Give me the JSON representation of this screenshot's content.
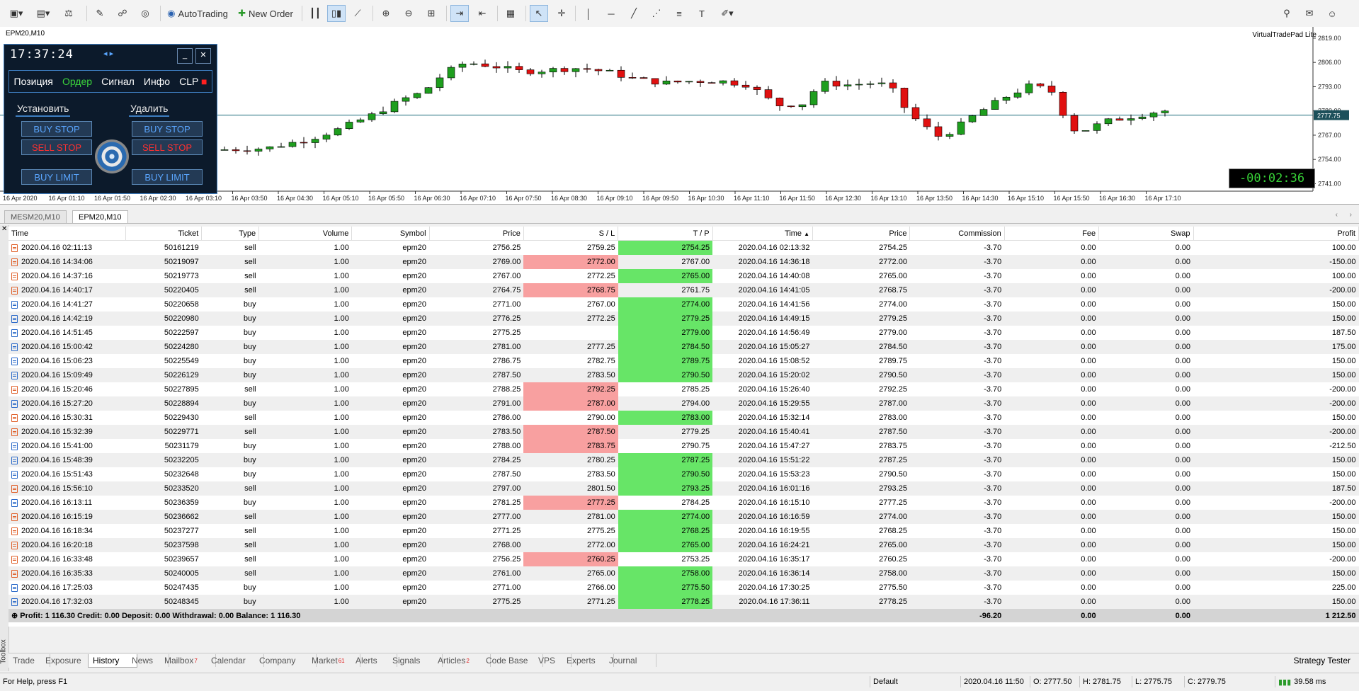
{
  "toolbar": {
    "autotrading_label": "AutoTrading",
    "new_order_label": "New Order"
  },
  "chart": {
    "title": "EPM20,M10",
    "vtp_label": "VirtualTradePad  Lite",
    "countdown": "-00:02:36",
    "current_price_label": "2777.75",
    "y_labels": [
      "2819.00",
      "2806.00",
      "2793.00",
      "2780.00",
      "2767.00",
      "2754.00",
      "2741.00"
    ],
    "x_labels": [
      "16 Apr 2020",
      "16 Apr 01:10",
      "16 Apr 01:50",
      "16 Apr 02:30",
      "16 Apr 03:10",
      "16 Apr 03:50",
      "16 Apr 04:30",
      "16 Apr 05:10",
      "16 Apr 05:50",
      "16 Apr 06:30",
      "16 Apr 07:10",
      "16 Apr 07:50",
      "16 Apr 08:30",
      "16 Apr 09:10",
      "16 Apr 09:50",
      "16 Apr 10:30",
      "16 Apr 11:10",
      "16 Apr 11:50",
      "16 Apr 12:30",
      "16 Apr 13:10",
      "16 Apr 13:50",
      "16 Apr 14:30",
      "16 Apr 15:10",
      "16 Apr 15:50",
      "16 Apr 16:30",
      "16 Apr 17:10"
    ],
    "colors": {
      "up": "#1e9e1e",
      "down": "#e01010",
      "grid": "#e6e6e6",
      "price_line": "#1c6b7a"
    }
  },
  "panel": {
    "clock": "17:37:24",
    "tabs": [
      "Позиция",
      "Ордер",
      "Сигнал",
      "Инфо",
      "CLP"
    ],
    "active_tab": "Ордер",
    "set_label": "Установить",
    "delete_label": "Удалить",
    "buttons": {
      "buy_stop": "BUY STOP",
      "sell_stop": "SELL STOP",
      "buy_limit": "BUY LIMIT"
    }
  },
  "window_tabs": [
    "MESM20,M10",
    "EPM20,M10"
  ],
  "grid": {
    "columns": [
      "Time",
      "Ticket",
      "Type",
      "Volume",
      "Symbol",
      "Price",
      "S / L",
      "T / P",
      "Time",
      "Price",
      "Commission",
      "Fee",
      "Swap",
      "Profit"
    ],
    "rows": [
      {
        "time": "2020.04.16 02:11:13",
        "ticket": "50161219",
        "type": "sell",
        "volume": "1.00",
        "symbol": "epm20",
        "price": "2756.25",
        "sl": "2759.25",
        "tp": "2754.25",
        "close_time": "2020.04.16 02:13:32",
        "close_price": "2754.25",
        "commission": "-3.70",
        "fee": "0.00",
        "swap": "0.00",
        "profit": "100.00"
      },
      {
        "time": "2020.04.16 14:34:06",
        "ticket": "50219097",
        "type": "sell",
        "volume": "1.00",
        "symbol": "epm20",
        "price": "2769.00",
        "sl": "2772.00",
        "tp": "2767.00",
        "close_time": "2020.04.16 14:36:18",
        "close_price": "2772.00",
        "commission": "-3.70",
        "fee": "0.00",
        "swap": "0.00",
        "profit": "-150.00"
      },
      {
        "time": "2020.04.16 14:37:16",
        "ticket": "50219773",
        "type": "sell",
        "volume": "1.00",
        "symbol": "epm20",
        "price": "2767.00",
        "sl": "2772.25",
        "tp": "2765.00",
        "close_time": "2020.04.16 14:40:08",
        "close_price": "2765.00",
        "commission": "-3.70",
        "fee": "0.00",
        "swap": "0.00",
        "profit": "100.00"
      },
      {
        "time": "2020.04.16 14:40:17",
        "ticket": "50220405",
        "type": "sell",
        "volume": "1.00",
        "symbol": "epm20",
        "price": "2764.75",
        "sl": "2768.75",
        "tp": "2761.75",
        "close_time": "2020.04.16 14:41:05",
        "close_price": "2768.75",
        "commission": "-3.70",
        "fee": "0.00",
        "swap": "0.00",
        "profit": "-200.00"
      },
      {
        "time": "2020.04.16 14:41:27",
        "ticket": "50220658",
        "type": "buy",
        "volume": "1.00",
        "symbol": "epm20",
        "price": "2771.00",
        "sl": "2767.00",
        "tp": "2774.00",
        "close_time": "2020.04.16 14:41:56",
        "close_price": "2774.00",
        "commission": "-3.70",
        "fee": "0.00",
        "swap": "0.00",
        "profit": "150.00"
      },
      {
        "time": "2020.04.16 14:42:19",
        "ticket": "50220980",
        "type": "buy",
        "volume": "1.00",
        "symbol": "epm20",
        "price": "2776.25",
        "sl": "2772.25",
        "tp": "2779.25",
        "close_time": "2020.04.16 14:49:15",
        "close_price": "2779.25",
        "commission": "-3.70",
        "fee": "0.00",
        "swap": "0.00",
        "profit": "150.00"
      },
      {
        "time": "2020.04.16 14:51:45",
        "ticket": "50222597",
        "type": "buy",
        "volume": "1.00",
        "symbol": "epm20",
        "price": "2775.25",
        "sl": "",
        "tp": "2779.00",
        "close_time": "2020.04.16 14:56:49",
        "close_price": "2779.00",
        "commission": "-3.70",
        "fee": "0.00",
        "swap": "0.00",
        "profit": "187.50"
      },
      {
        "time": "2020.04.16 15:00:42",
        "ticket": "50224280",
        "type": "buy",
        "volume": "1.00",
        "symbol": "epm20",
        "price": "2781.00",
        "sl": "2777.25",
        "tp": "2784.50",
        "close_time": "2020.04.16 15:05:27",
        "close_price": "2784.50",
        "commission": "-3.70",
        "fee": "0.00",
        "swap": "0.00",
        "profit": "175.00"
      },
      {
        "time": "2020.04.16 15:06:23",
        "ticket": "50225549",
        "type": "buy",
        "volume": "1.00",
        "symbol": "epm20",
        "price": "2786.75",
        "sl": "2782.75",
        "tp": "2789.75",
        "close_time": "2020.04.16 15:08:52",
        "close_price": "2789.75",
        "commission": "-3.70",
        "fee": "0.00",
        "swap": "0.00",
        "profit": "150.00"
      },
      {
        "time": "2020.04.16 15:09:49",
        "ticket": "50226129",
        "type": "buy",
        "volume": "1.00",
        "symbol": "epm20",
        "price": "2787.50",
        "sl": "2783.50",
        "tp": "2790.50",
        "close_time": "2020.04.16 15:20:02",
        "close_price": "2790.50",
        "commission": "-3.70",
        "fee": "0.00",
        "swap": "0.00",
        "profit": "150.00"
      },
      {
        "time": "2020.04.16 15:20:46",
        "ticket": "50227895",
        "type": "sell",
        "volume": "1.00",
        "symbol": "epm20",
        "price": "2788.25",
        "sl": "2792.25",
        "tp": "2785.25",
        "close_time": "2020.04.16 15:26:40",
        "close_price": "2792.25",
        "commission": "-3.70",
        "fee": "0.00",
        "swap": "0.00",
        "profit": "-200.00"
      },
      {
        "time": "2020.04.16 15:27:20",
        "ticket": "50228894",
        "type": "buy",
        "volume": "1.00",
        "symbol": "epm20",
        "price": "2791.00",
        "sl": "2787.00",
        "tp": "2794.00",
        "close_time": "2020.04.16 15:29:55",
        "close_price": "2787.00",
        "commission": "-3.70",
        "fee": "0.00",
        "swap": "0.00",
        "profit": "-200.00"
      },
      {
        "time": "2020.04.16 15:30:31",
        "ticket": "50229430",
        "type": "sell",
        "volume": "1.00",
        "symbol": "epm20",
        "price": "2786.00",
        "sl": "2790.00",
        "tp": "2783.00",
        "close_time": "2020.04.16 15:32:14",
        "close_price": "2783.00",
        "commission": "-3.70",
        "fee": "0.00",
        "swap": "0.00",
        "profit": "150.00"
      },
      {
        "time": "2020.04.16 15:32:39",
        "ticket": "50229771",
        "type": "sell",
        "volume": "1.00",
        "symbol": "epm20",
        "price": "2783.50",
        "sl": "2787.50",
        "tp": "2779.25",
        "close_time": "2020.04.16 15:40:41",
        "close_price": "2787.50",
        "commission": "-3.70",
        "fee": "0.00",
        "swap": "0.00",
        "profit": "-200.00"
      },
      {
        "time": "2020.04.16 15:41:00",
        "ticket": "50231179",
        "type": "buy",
        "volume": "1.00",
        "symbol": "epm20",
        "price": "2788.00",
        "sl": "2783.75",
        "tp": "2790.75",
        "close_time": "2020.04.16 15:47:27",
        "close_price": "2783.75",
        "commission": "-3.70",
        "fee": "0.00",
        "swap": "0.00",
        "profit": "-212.50"
      },
      {
        "time": "2020.04.16 15:48:39",
        "ticket": "50232205",
        "type": "buy",
        "volume": "1.00",
        "symbol": "epm20",
        "price": "2784.25",
        "sl": "2780.25",
        "tp": "2787.25",
        "close_time": "2020.04.16 15:51:22",
        "close_price": "2787.25",
        "commission": "-3.70",
        "fee": "0.00",
        "swap": "0.00",
        "profit": "150.00"
      },
      {
        "time": "2020.04.16 15:51:43",
        "ticket": "50232648",
        "type": "buy",
        "volume": "1.00",
        "symbol": "epm20",
        "price": "2787.50",
        "sl": "2783.50",
        "tp": "2790.50",
        "close_time": "2020.04.16 15:53:23",
        "close_price": "2790.50",
        "commission": "-3.70",
        "fee": "0.00",
        "swap": "0.00",
        "profit": "150.00"
      },
      {
        "time": "2020.04.16 15:56:10",
        "ticket": "50233520",
        "type": "sell",
        "volume": "1.00",
        "symbol": "epm20",
        "price": "2797.00",
        "sl": "2801.50",
        "tp": "2793.25",
        "close_time": "2020.04.16 16:01:16",
        "close_price": "2793.25",
        "commission": "-3.70",
        "fee": "0.00",
        "swap": "0.00",
        "profit": "187.50"
      },
      {
        "time": "2020.04.16 16:13:11",
        "ticket": "50236359",
        "type": "buy",
        "volume": "1.00",
        "symbol": "epm20",
        "price": "2781.25",
        "sl": "2777.25",
        "tp": "2784.25",
        "close_time": "2020.04.16 16:15:10",
        "close_price": "2777.25",
        "commission": "-3.70",
        "fee": "0.00",
        "swap": "0.00",
        "profit": "-200.00"
      },
      {
        "time": "2020.04.16 16:15:19",
        "ticket": "50236662",
        "type": "sell",
        "volume": "1.00",
        "symbol": "epm20",
        "price": "2777.00",
        "sl": "2781.00",
        "tp": "2774.00",
        "close_time": "2020.04.16 16:16:59",
        "close_price": "2774.00",
        "commission": "-3.70",
        "fee": "0.00",
        "swap": "0.00",
        "profit": "150.00"
      },
      {
        "time": "2020.04.16 16:18:34",
        "ticket": "50237277",
        "type": "sell",
        "volume": "1.00",
        "symbol": "epm20",
        "price": "2771.25",
        "sl": "2775.25",
        "tp": "2768.25",
        "close_time": "2020.04.16 16:19:55",
        "close_price": "2768.25",
        "commission": "-3.70",
        "fee": "0.00",
        "swap": "0.00",
        "profit": "150.00"
      },
      {
        "time": "2020.04.16 16:20:18",
        "ticket": "50237598",
        "type": "sell",
        "volume": "1.00",
        "symbol": "epm20",
        "price": "2768.00",
        "sl": "2772.00",
        "tp": "2765.00",
        "close_time": "2020.04.16 16:24:21",
        "close_price": "2765.00",
        "commission": "-3.70",
        "fee": "0.00",
        "swap": "0.00",
        "profit": "150.00"
      },
      {
        "time": "2020.04.16 16:33:48",
        "ticket": "50239657",
        "type": "sell",
        "volume": "1.00",
        "symbol": "epm20",
        "price": "2756.25",
        "sl": "2760.25",
        "tp": "2753.25",
        "close_time": "2020.04.16 16:35:17",
        "close_price": "2760.25",
        "commission": "-3.70",
        "fee": "0.00",
        "swap": "0.00",
        "profit": "-200.00"
      },
      {
        "time": "2020.04.16 16:35:33",
        "ticket": "50240005",
        "type": "sell",
        "volume": "1.00",
        "symbol": "epm20",
        "price": "2761.00",
        "sl": "2765.00",
        "tp": "2758.00",
        "close_time": "2020.04.16 16:36:14",
        "close_price": "2758.00",
        "commission": "-3.70",
        "fee": "0.00",
        "swap": "0.00",
        "profit": "150.00"
      },
      {
        "time": "2020.04.16 17:25:03",
        "ticket": "50247435",
        "type": "buy",
        "volume": "1.00",
        "symbol": "epm20",
        "price": "2771.00",
        "sl": "2766.00",
        "tp": "2775.50",
        "close_time": "2020.04.16 17:30:25",
        "close_price": "2775.50",
        "commission": "-3.70",
        "fee": "0.00",
        "swap": "0.00",
        "profit": "225.00"
      },
      {
        "time": "2020.04.16 17:32:03",
        "ticket": "50248345",
        "type": "buy",
        "volume": "1.00",
        "symbol": "epm20",
        "price": "2775.25",
        "sl": "2771.25",
        "tp": "2778.25",
        "close_time": "2020.04.16 17:36:11",
        "close_price": "2778.25",
        "commission": "-3.70",
        "fee": "0.00",
        "swap": "0.00",
        "profit": "150.00"
      }
    ],
    "summary": {
      "text": "Profit: 1 116.30  Credit: 0.00  Deposit: 0.00  Withdrawal: 0.00  Balance: 1 116.30",
      "commission": "-96.20",
      "fee": "0.00",
      "swap": "0.00",
      "profit": "1 212.50"
    }
  },
  "bottom_tabs": [
    "Trade",
    "Exposure",
    "History",
    "News",
    "Mailbox",
    "Calendar",
    "Company",
    "Market",
    "Alerts",
    "Signals",
    "Articles",
    "Code Base",
    "VPS",
    "Experts",
    "Journal"
  ],
  "bottom_badges": {
    "Mailbox": "7",
    "Market": "61",
    "Articles": "2"
  },
  "active_bottom_tab": "History",
  "strategy_tester": "Strategy Tester",
  "toolbox_label": "Toolbox",
  "status": {
    "help": "For Help, press F1",
    "profile": "Default",
    "datetime": "2020.04.16 11:50",
    "open": "O: 2777.50",
    "high": "H: 2781.75",
    "low": "L: 2775.75",
    "close": "C: 2779.75",
    "ping": "39.58 ms"
  }
}
